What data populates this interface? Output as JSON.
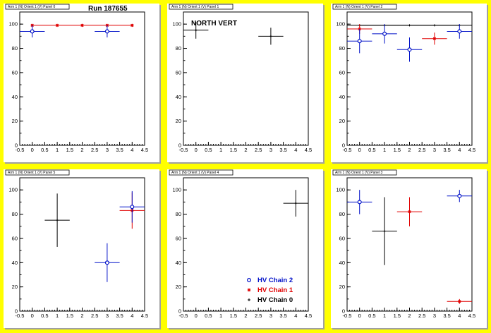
{
  "colors": {
    "canvas_bg": "#ffff00",
    "chain0": "#000000",
    "chain1": "#e00000",
    "chain2": "#0010c8"
  },
  "legend": [
    {
      "label": "HV Chain 2",
      "marker": "open-circle",
      "color": "#0010c8"
    },
    {
      "label": "HV Chain 1",
      "marker": "star",
      "color": "#e00000"
    },
    {
      "label": "HV Chain 0",
      "marker": "plus",
      "color": "#000000"
    }
  ],
  "chart_data": [
    {
      "type": "scatter",
      "title": "Arm 1 (N) Orient 1 (V) Panel 0",
      "annotation": "Run 187655",
      "xlim": [
        -0.5,
        4.5
      ],
      "ylim": [
        0,
        110
      ],
      "xticks": [
        "-0.5",
        "0",
        "0.5",
        "1",
        "1.5",
        "2",
        "2.5",
        "3",
        "3.5",
        "4",
        "4.5"
      ],
      "yticks": [
        "0",
        "20",
        "40",
        "60",
        "80",
        "100"
      ],
      "series": [
        {
          "points": [
            {
              "x": 0,
              "y": 99,
              "xerr": 0,
              "yerr": 0
            },
            {
              "x": 1,
              "y": 99,
              "xerr": 0,
              "yerr": 0
            },
            {
              "x": 2,
              "y": 99,
              "xerr": 0,
              "yerr": 0
            },
            {
              "x": 3,
              "y": 99,
              "xerr": 0,
              "yerr": 0
            },
            {
              "x": 4,
              "y": 99,
              "xerr": 0,
              "yerr": 0
            }
          ],
          "marker": "plus",
          "color": "#000000"
        },
        {
          "points": [
            {
              "x": 0,
              "y": 99,
              "xerr": 0,
              "yerr": 0
            },
            {
              "x": 1,
              "y": 99,
              "xerr": 0,
              "yerr": 0
            },
            {
              "x": 2,
              "y": 99,
              "xerr": 0,
              "yerr": 0
            },
            {
              "x": 3,
              "y": 99,
              "xerr": 0,
              "yerr": 0
            },
            {
              "x": 4,
              "y": 99,
              "xerr": 0,
              "yerr": 0
            }
          ],
          "marker": "star",
          "color": "#e00000",
          "line": true
        },
        {
          "points": [
            {
              "x": 0,
              "y": 94,
              "xerr": 0.5,
              "yerr": 5
            },
            {
              "x": 3,
              "y": 94,
              "xerr": 0.5,
              "yerr": 5
            }
          ],
          "marker": "open-circle",
          "color": "#0010c8"
        }
      ]
    },
    {
      "type": "scatter",
      "title": "Arm 1 (N) Orient 1 (V) Panel 1",
      "annotation": "NORTH VERT",
      "xlim": [
        -0.5,
        4.5
      ],
      "ylim": [
        0,
        110
      ],
      "xticks": [
        "-0.5",
        "0",
        "0.5",
        "1",
        "1.5",
        "2",
        "2.5",
        "3",
        "3.5",
        "4",
        "4.5"
      ],
      "yticks": [
        "0",
        "20",
        "40",
        "60",
        "80",
        "100"
      ],
      "series": [
        {
          "points": [
            {
              "x": 0,
              "y": 95,
              "xerr": 0.5,
              "yerr": 7
            },
            {
              "x": 3,
              "y": 90,
              "xerr": 0.5,
              "yerr": 7
            }
          ],
          "marker": "plus",
          "color": "#000000"
        }
      ]
    },
    {
      "type": "scatter",
      "title": "Arm 1 (N) Orient 1 (V) Panel 2",
      "xlim": [
        -0.5,
        4.5
      ],
      "ylim": [
        0,
        110
      ],
      "xticks": [
        "-0.5",
        "0",
        "0.5",
        "1",
        "1.5",
        "2",
        "2.5",
        "3",
        "3.5",
        "4",
        "4.5"
      ],
      "yticks": [
        "0",
        "20",
        "40",
        "60",
        "80",
        "100"
      ],
      "series": [
        {
          "points": [
            {
              "x": 0,
              "y": 99,
              "xerr": 0.5,
              "yerr": 0
            },
            {
              "x": 1,
              "y": 99,
              "xerr": 0.5,
              "yerr": 0
            },
            {
              "x": 2,
              "y": 99,
              "xerr": 0.5,
              "yerr": 0
            },
            {
              "x": 3,
              "y": 99,
              "xerr": 0.5,
              "yerr": 0
            },
            {
              "x": 4,
              "y": 99,
              "xerr": 0.5,
              "yerr": 0
            }
          ],
          "marker": "plus",
          "color": "#000000",
          "line": true
        },
        {
          "points": [
            {
              "x": 0,
              "y": 96,
              "xerr": 0.5,
              "yerr": 4
            },
            {
              "x": 3,
              "y": 88,
              "xerr": 0.5,
              "yerr": 5
            }
          ],
          "marker": "star",
          "color": "#e00000"
        },
        {
          "points": [
            {
              "x": 0,
              "y": 86,
              "xerr": 0.5,
              "yerr": 10
            },
            {
              "x": 1,
              "y": 92,
              "xerr": 0.5,
              "yerr": 8
            },
            {
              "x": 2,
              "y": 79,
              "xerr": 0.5,
              "yerr": 10
            },
            {
              "x": 4,
              "y": 94,
              "xerr": 0.5,
              "yerr": 6
            }
          ],
          "marker": "open-circle",
          "color": "#0010c8"
        }
      ]
    },
    {
      "type": "scatter",
      "title": "Arm 1 (N) Orient 1 (V) Panel 5",
      "xlim": [
        -0.5,
        4.5
      ],
      "ylim": [
        0,
        110
      ],
      "xticks": [
        "-0.5",
        "0",
        "0.5",
        "1",
        "1.5",
        "2",
        "2.5",
        "3",
        "3.5",
        "4",
        "4.5"
      ],
      "yticks": [
        "0",
        "20",
        "40",
        "60",
        "80",
        "100"
      ],
      "series": [
        {
          "points": [
            {
              "x": 1,
              "y": 75,
              "xerr": 0.5,
              "yerr": 22
            }
          ],
          "marker": "plus",
          "color": "#000000"
        },
        {
          "points": [
            {
              "x": 4,
              "y": 83,
              "xerr": 0.5,
              "yerr": 15
            }
          ],
          "marker": "star",
          "color": "#e00000"
        },
        {
          "points": [
            {
              "x": 3,
              "y": 40,
              "xerr": 0.5,
              "yerr": 16
            },
            {
              "x": 4,
              "y": 86,
              "xerr": 0.5,
              "yerr": 13
            }
          ],
          "marker": "open-circle",
          "color": "#0010c8"
        }
      ]
    },
    {
      "type": "scatter",
      "title": "Arm 1 (N) Orient 1 (V) Panel 4",
      "xlim": [
        -0.5,
        4.5
      ],
      "ylim": [
        0,
        110
      ],
      "xticks": [
        "-0.5",
        "0",
        "0.5",
        "1",
        "1.5",
        "2",
        "2.5",
        "3",
        "3.5",
        "4",
        "4.5"
      ],
      "yticks": [
        "0",
        "20",
        "40",
        "60",
        "80",
        "100"
      ],
      "has_legend": true,
      "series": [
        {
          "points": [
            {
              "x": 4,
              "y": 89,
              "xerr": 0.5,
              "yerr": 11
            }
          ],
          "marker": "plus",
          "color": "#000000"
        }
      ]
    },
    {
      "type": "scatter",
      "title": "Arm 1 (N) Orient 1 (V) Panel 3",
      "xlim": [
        -0.5,
        4.5
      ],
      "ylim": [
        0,
        110
      ],
      "xticks": [
        "-0.5",
        "0",
        "0.5",
        "1",
        "1.5",
        "2",
        "2.5",
        "3",
        "3.5",
        "4",
        "4.5"
      ],
      "yticks": [
        "0",
        "20",
        "40",
        "60",
        "80",
        "100"
      ],
      "series": [
        {
          "points": [
            {
              "x": 1,
              "y": 66,
              "xerr": 0.5,
              "yerr": 28
            }
          ],
          "marker": "plus",
          "color": "#000000"
        },
        {
          "points": [
            {
              "x": 2,
              "y": 82,
              "xerr": 0.5,
              "yerr": 12
            },
            {
              "x": 4,
              "y": 8,
              "xerr": 0.5,
              "yerr": 2
            }
          ],
          "marker": "star",
          "color": "#e00000"
        },
        {
          "points": [
            {
              "x": 0,
              "y": 90,
              "xerr": 0.5,
              "yerr": 10
            },
            {
              "x": 4,
              "y": 95,
              "xerr": 0.5,
              "yerr": 5
            }
          ],
          "marker": "open-circle",
          "color": "#0010c8"
        }
      ]
    }
  ]
}
